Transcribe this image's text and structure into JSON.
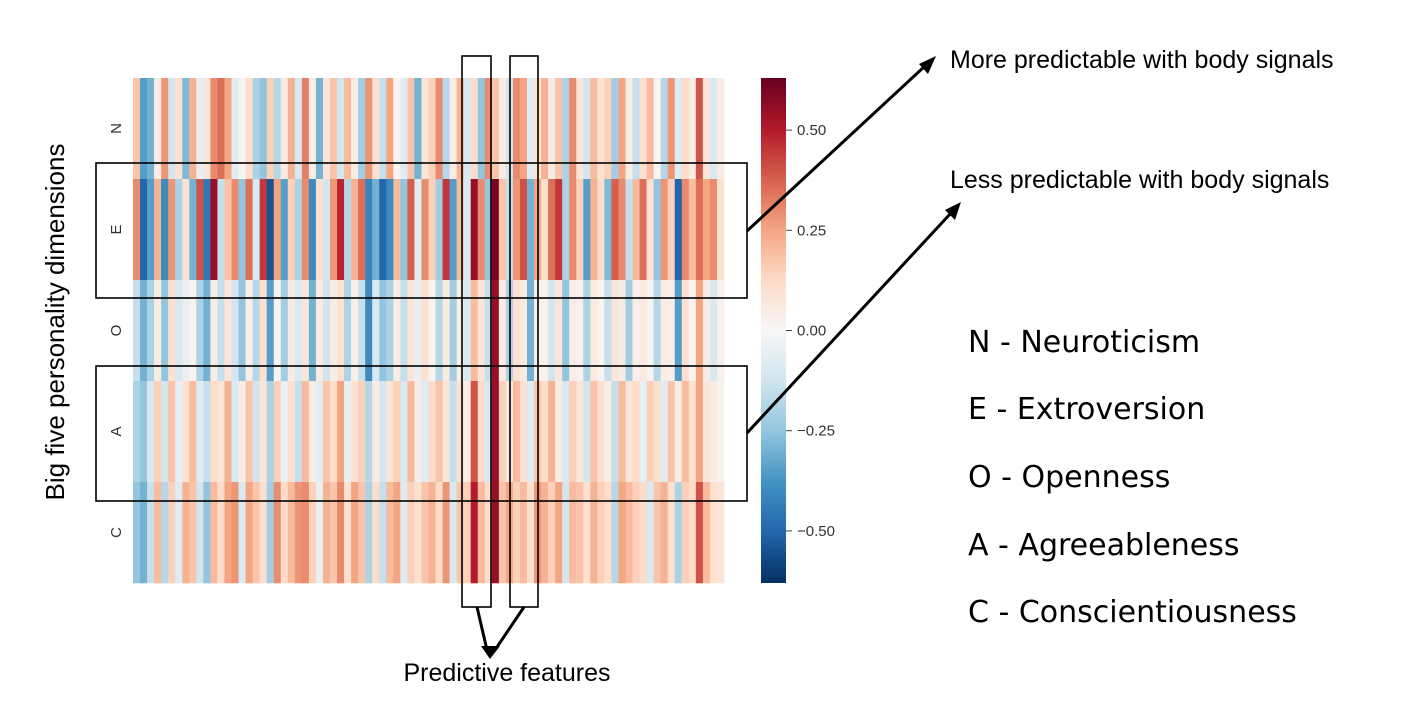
{
  "chart_data": {
    "type": "heatmap",
    "ylabel": "Big five personality dimensions",
    "xlabel": "Predictive features",
    "row_labels": [
      "N",
      "E",
      "O",
      "A",
      "C"
    ],
    "colorbar": {
      "ticks": [
        0.5,
        0.25,
        0.0,
        -0.25,
        -0.5
      ],
      "tick_labels": [
        "0.50",
        "0.25",
        "0.00",
        "−0.25",
        "−0.50"
      ],
      "vmin": -0.63,
      "vmax": 0.63,
      "colormap": "RdBu_r"
    },
    "n_features": 84,
    "values": [
      [
        0.18,
        -0.35,
        -0.3,
        0.05,
        0.28,
        -0.12,
        0.1,
        -0.28,
        0.22,
        -0.05,
        0.08,
        0.3,
        0.35,
        0.25,
        -0.08,
        0.02,
        0.12,
        -0.2,
        -0.25,
        0.15,
        -0.18,
        0.06,
        0.22,
        -0.1,
        0.32,
        0.05,
        -0.3,
        0.08,
        0.18,
        -0.12,
        0.2,
        0.05,
        -0.22,
        0.28,
        0.1,
        -0.15,
        0.25,
        0.02,
        -0.08,
        0.18,
        -0.3,
        0.08,
        0.15,
        0.3,
        -0.18,
        0.05,
        0.22,
        -0.1,
        0.12,
        -0.25,
        0.3,
        0.18,
        0.05,
        -0.12,
        0.3,
        0.25,
        -0.08,
        0.1,
        0.22,
        0.05,
        0.18,
        -0.2,
        0.3,
        0.08,
        -0.12,
        0.2,
        0.1,
        0.15,
        -0.22,
        0.25,
        0.05,
        -0.15,
        0.1,
        0.2,
        0.02,
        -0.18,
        0.28,
        -0.08,
        0.12,
        0.05,
        0.4,
        0.08,
        -0.1,
        0.05
      ],
      [
        0.3,
        -0.5,
        -0.35,
        0.22,
        -0.4,
        0.28,
        -0.2,
        0.1,
        -0.3,
        0.4,
        -0.45,
        0.55,
        -0.15,
        0.18,
        0.3,
        -0.25,
        0.35,
        -0.1,
        0.45,
        -0.55,
        0.25,
        -0.35,
        0.15,
        -0.2,
        0.3,
        -0.4,
        0.1,
        -0.12,
        0.28,
        0.48,
        -0.18,
        0.22,
        0.35,
        -0.42,
        -0.3,
        -0.5,
        -0.4,
        0.2,
        -0.25,
        0.38,
        -0.08,
        0.3,
        0.15,
        -0.22,
        0.45,
        -0.35,
        0.2,
        -0.1,
        0.55,
        0.3,
        -0.25,
        0.6,
        0.18,
        -0.15,
        0.28,
        0.4,
        -0.3,
        0.25,
        0.1,
        0.35,
        0.45,
        -0.2,
        0.3,
        0.15,
        -0.35,
        0.22,
        0.12,
        -0.28,
        0.38,
        0.3,
        -0.15,
        0.2,
        0.35,
        0.1,
        -0.25,
        0.28,
        0.15,
        -0.5,
        0.3,
        0.2,
        0.35,
        0.25,
        0.3,
        0.1
      ],
      [
        -0.15,
        -0.3,
        -0.2,
        0.05,
        -0.25,
        0.1,
        -0.1,
        -0.05,
        0.02,
        -0.2,
        -0.3,
        0.05,
        -0.15,
        0.08,
        -0.12,
        -0.25,
        0.04,
        -0.18,
        0.1,
        -0.35,
        0.02,
        -0.22,
        0.05,
        -0.1,
        0.08,
        -0.3,
        0.06,
        -0.12,
        0.05,
        0.1,
        -0.2,
        0.03,
        -0.15,
        -0.4,
        -0.1,
        -0.25,
        -0.2,
        0.05,
        -0.15,
        0.08,
        -0.05,
        0.1,
        0.02,
        -0.18,
        0.06,
        -0.22,
        0.04,
        -0.1,
        0.2,
        0.08,
        -0.15,
        0.55,
        0.05,
        -0.2,
        0.1,
        0.06,
        -0.3,
        0.04,
        0.02,
        -0.12,
        0.08,
        -0.25,
        0.05,
        0.03,
        -0.2,
        0.06,
        0.02,
        -0.15,
        0.08,
        0.05,
        -0.22,
        0.04,
        0.06,
        0.02,
        -0.18,
        0.05,
        0.04,
        -0.35,
        0.1,
        0.02,
        0.25,
        0.05,
        -0.1,
        0.03
      ],
      [
        -0.2,
        -0.25,
        -0.1,
        0.15,
        -0.12,
        0.18,
        -0.05,
        0.1,
        0.2,
        -0.08,
        -0.15,
        0.12,
        0.08,
        0.22,
        -0.1,
        0.05,
        0.18,
        -0.12,
        0.08,
        -0.2,
        0.15,
        -0.05,
        0.1,
        -0.15,
        0.2,
        0.05,
        -0.08,
        0.18,
        0.12,
        0.25,
        -0.05,
        0.1,
        0.15,
        -0.18,
        0.05,
        -0.12,
        0.08,
        0.15,
        -0.1,
        0.2,
        0.05,
        -0.08,
        0.12,
        0.18,
        0.08,
        -0.15,
        0.1,
        0.05,
        0.4,
        0.12,
        -0.1,
        0.55,
        0.15,
        0.05,
        0.2,
        0.1,
        -0.08,
        0.18,
        0.12,
        0.22,
        0.05,
        -0.1,
        0.15,
        0.08,
        -0.12,
        0.18,
        0.1,
        0.05,
        -0.15,
        0.2,
        0.08,
        0.12,
        -0.05,
        0.15,
        0.1,
        -0.08,
        0.18,
        0.05,
        0.2,
        0.1,
        0.25,
        0.08,
        0.05,
        0.02
      ],
      [
        -0.25,
        -0.3,
        -0.15,
        0.2,
        -0.18,
        0.15,
        -0.08,
        0.22,
        0.18,
        -0.12,
        -0.25,
        0.2,
        0.12,
        0.25,
        0.28,
        -0.1,
        0.25,
        0.18,
        0.1,
        -0.22,
        0.3,
        0.12,
        0.2,
        0.28,
        0.3,
        0.15,
        -0.05,
        0.22,
        0.18,
        0.3,
        0.1,
        0.25,
        0.18,
        -0.2,
        0.12,
        -0.15,
        0.2,
        0.25,
        -0.08,
        0.15,
        0.1,
        0.18,
        0.22,
        0.12,
        0.28,
        -0.1,
        0.18,
        0.15,
        0.5,
        0.2,
        0.12,
        0.55,
        0.18,
        0.25,
        0.15,
        0.2,
        0.1,
        0.28,
        0.22,
        0.15,
        0.25,
        -0.12,
        0.2,
        0.18,
        0.1,
        0.22,
        0.15,
        0.12,
        -0.18,
        0.25,
        0.2,
        0.15,
        0.12,
        -0.1,
        0.18,
        0.22,
        0.1,
        -0.2,
        0.15,
        0.12,
        0.4,
        0.2,
        0.1,
        0.08
      ]
    ]
  },
  "annotations": {
    "more": "More predictable with body signals",
    "less": "Less predictable with body signals",
    "features": "Predictive features"
  },
  "legend": [
    "N - Neuroticism",
    "E - Extroversion",
    "O - Openness",
    "A - Agreeableness",
    "C - Conscientiousness"
  ]
}
